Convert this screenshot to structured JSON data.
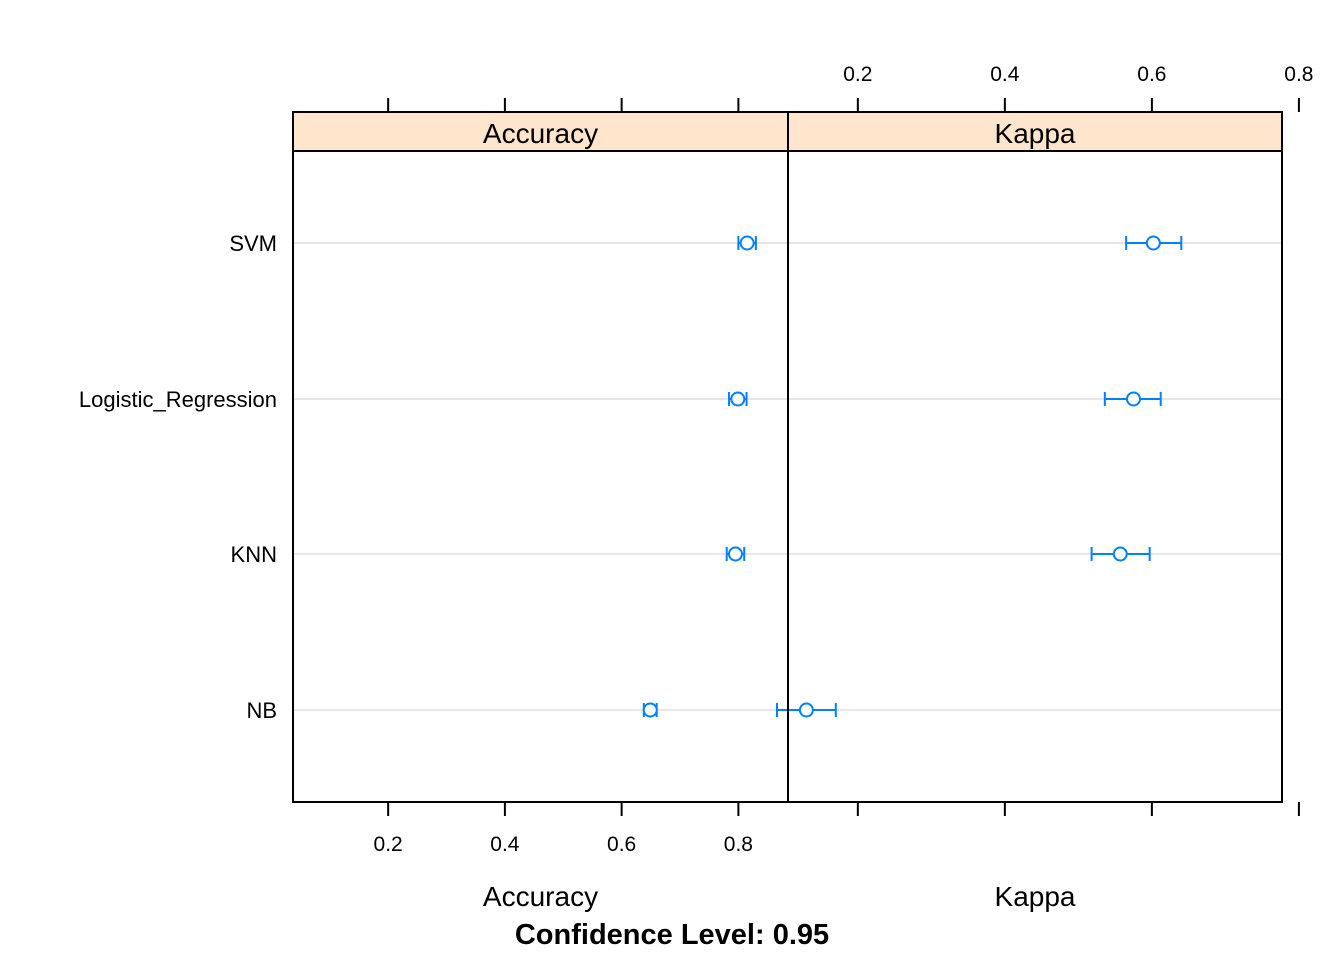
{
  "chart_data": {
    "type": "dotplot",
    "caption": "Confidence Level: 0.95",
    "categories": [
      "NB",
      "KNN",
      "Logistic_Regression",
      "SVM"
    ],
    "panels": [
      {
        "strip_label": "Accuracy",
        "xlabel": "Accuracy",
        "ticks": [
          "0.2",
          "0.4",
          "0.6",
          "0.8"
        ],
        "tick_values": [
          0.2,
          0.4,
          0.6,
          0.8
        ],
        "tick_position": "bottom",
        "xlim": [
          0.037,
          0.885
        ],
        "points": [
          {
            "category": "NB",
            "estimate": 0.649,
            "lower": 0.638,
            "upper": 0.66
          },
          {
            "category": "KNN",
            "estimate": 0.795,
            "lower": 0.78,
            "upper": 0.81
          },
          {
            "category": "Logistic_Regression",
            "estimate": 0.799,
            "lower": 0.784,
            "upper": 0.814
          },
          {
            "category": "SVM",
            "estimate": 0.815,
            "lower": 0.8,
            "upper": 0.83
          }
        ]
      },
      {
        "strip_label": "Kappa",
        "xlabel": "Kappa",
        "ticks": [
          "0.2",
          "0.4",
          "0.6",
          "0.8"
        ],
        "tick_values": [
          0.2,
          0.4,
          0.6,
          0.8
        ],
        "tick_position": "top",
        "xlim": [
          0.105,
          0.777
        ],
        "points": [
          {
            "category": "NB",
            "estimate": 0.13,
            "lower": 0.09,
            "upper": 0.17
          },
          {
            "category": "KNN",
            "estimate": 0.557,
            "lower": 0.518,
            "upper": 0.597
          },
          {
            "category": "Logistic_Regression",
            "estimate": 0.575,
            "lower": 0.536,
            "upper": 0.612
          },
          {
            "category": "SVM",
            "estimate": 0.602,
            "lower": 0.565,
            "upper": 0.64
          }
        ]
      }
    ],
    "colors": {
      "point": "#0080ff",
      "strip_fill": "#ffe5cc",
      "refline": "#e6e6e6",
      "frame": "#000000"
    },
    "grid": false,
    "legend": "none"
  }
}
